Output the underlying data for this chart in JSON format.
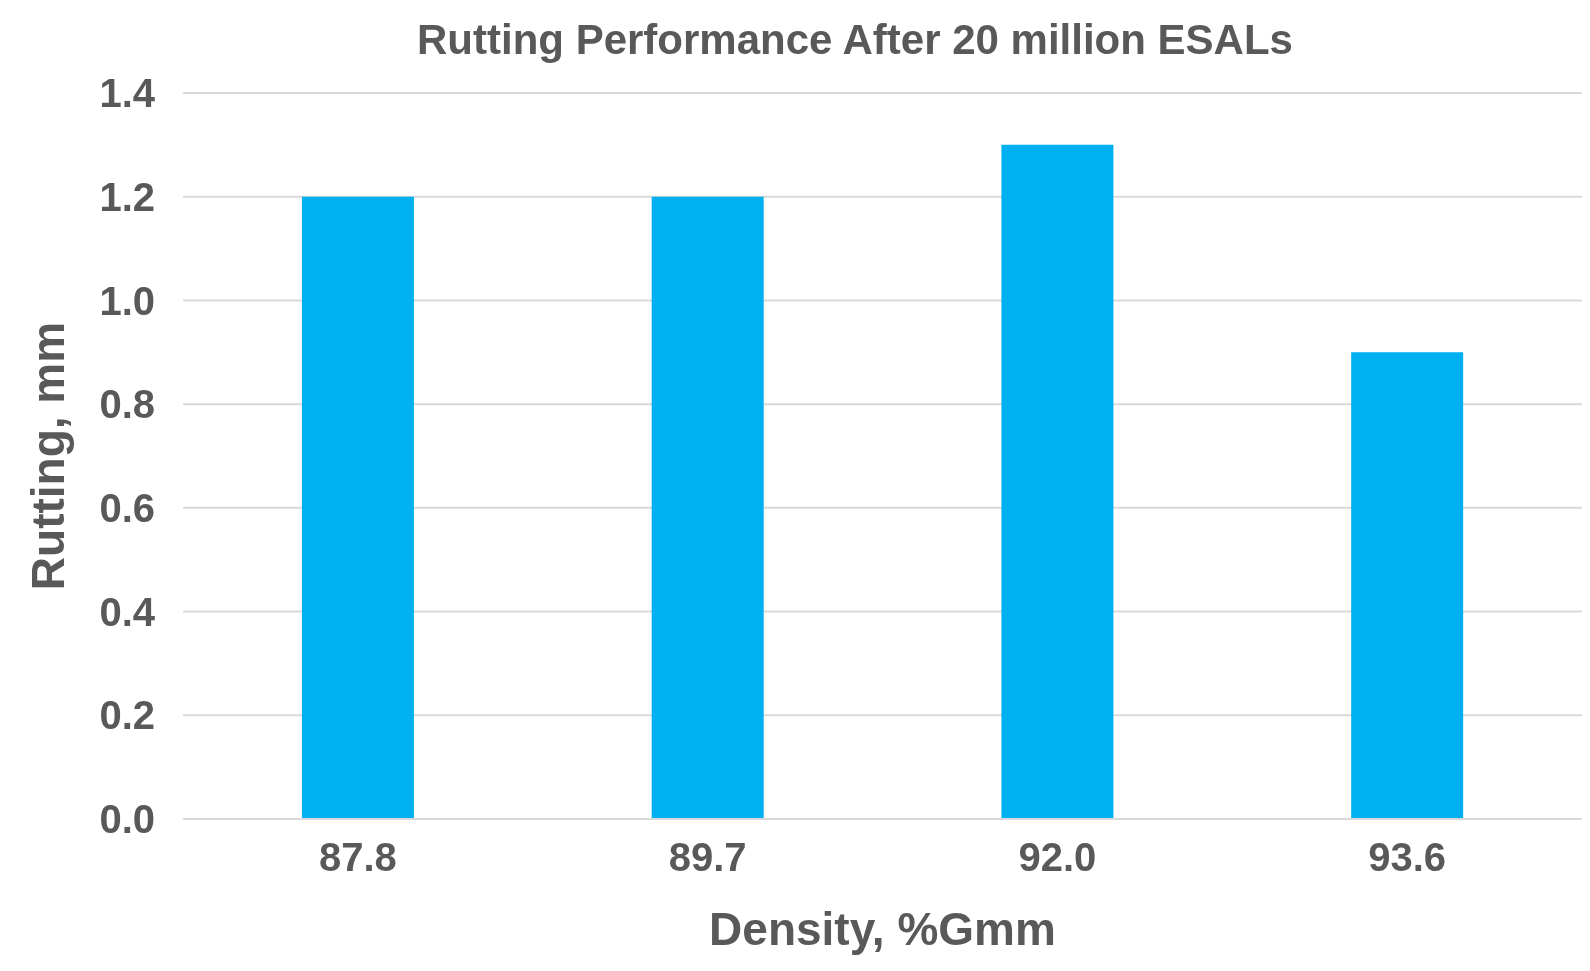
{
  "chart_data": {
    "type": "bar",
    "title": "Rutting Performance After 20 million ESALs",
    "xlabel": "Density, %Gmm",
    "ylabel": "Rutting, mm",
    "categories": [
      "87.8",
      "89.7",
      "92.0",
      "93.6"
    ],
    "values": [
      1.2,
      1.2,
      1.3,
      0.9
    ],
    "color": "#00b0f0",
    "ylim": [
      0,
      1.4
    ],
    "yticks": [
      {
        "value": 0,
        "label": "0.0"
      },
      {
        "value": 0.2,
        "label": "0.2"
      },
      {
        "value": 0.4,
        "label": "0.4"
      },
      {
        "value": 0.6,
        "label": "0.6"
      },
      {
        "value": 0.8,
        "label": "0.8"
      },
      {
        "value": 1,
        "label": "1.0"
      },
      {
        "value": 1.2,
        "label": "1.2"
      },
      {
        "value": 1.4,
        "label": "1.4"
      }
    ],
    "grid": "y",
    "legend": false
  }
}
